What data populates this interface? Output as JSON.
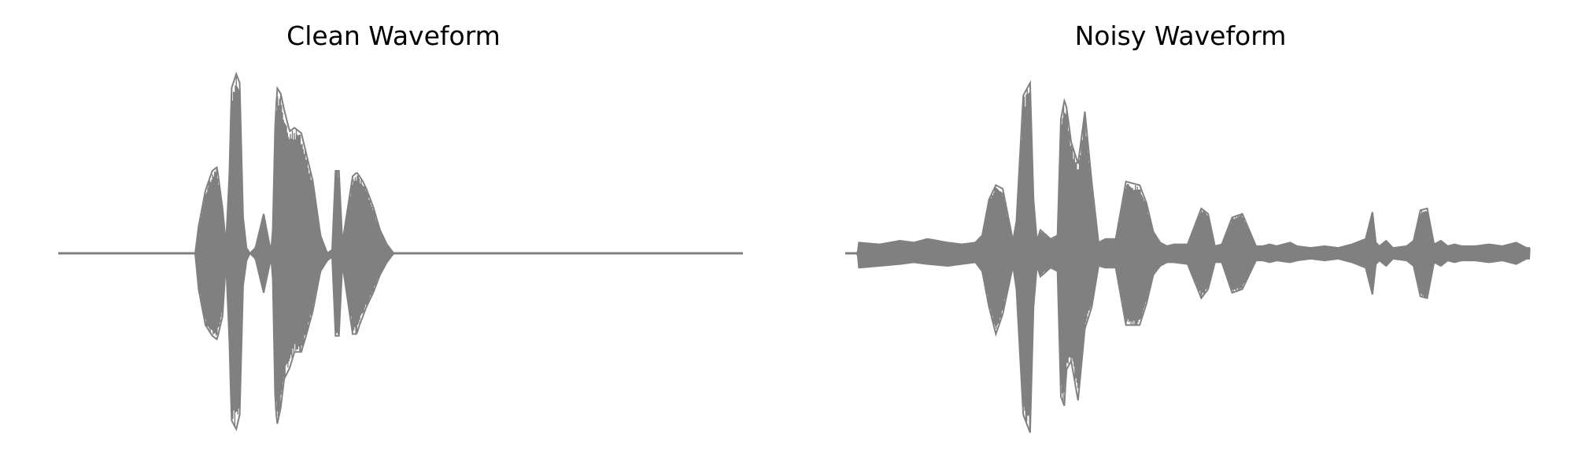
{
  "chart_data": [
    {
      "type": "line",
      "title": "Clean Waveform",
      "axes_visible": false,
      "color": "#808080",
      "x": [
        0.0,
        0.2,
        0.205,
        0.215,
        0.225,
        0.232,
        0.24,
        0.245,
        0.25,
        0.253,
        0.26,
        0.265,
        0.27,
        0.275,
        0.28,
        0.288,
        0.3,
        0.31,
        0.313,
        0.317,
        0.32,
        0.325,
        0.33,
        0.338,
        0.345,
        0.355,
        0.362,
        0.372,
        0.383,
        0.393,
        0.4,
        0.405,
        0.41,
        0.415,
        0.43,
        0.436,
        0.44,
        0.445,
        0.45,
        0.46,
        0.47,
        0.48,
        0.49,
        0.5,
        0.52,
        0.6,
        0.8,
        1.0
      ],
      "amp_upper": [
        0.0,
        0.0,
        0.15,
        0.35,
        0.46,
        0.48,
        0.25,
        0.05,
        0.45,
        0.92,
        1.0,
        0.95,
        0.2,
        0.03,
        0.0,
        0.03,
        0.22,
        0.02,
        0.08,
        0.75,
        0.92,
        0.89,
        0.8,
        0.68,
        0.7,
        0.67,
        0.56,
        0.4,
        0.1,
        0.0,
        0.02,
        0.46,
        0.46,
        0.06,
        0.43,
        0.45,
        0.43,
        0.4,
        0.36,
        0.26,
        0.13,
        0.05,
        0.0,
        0.0,
        0.0,
        0.0,
        0.0,
        0.0
      ],
      "amp_lower": [
        0.0,
        0.0,
        -0.2,
        -0.4,
        -0.46,
        -0.48,
        -0.35,
        -0.05,
        -0.5,
        -0.93,
        -0.98,
        -0.9,
        -0.18,
        -0.04,
        0.0,
        -0.03,
        -0.22,
        -0.04,
        -0.08,
        -0.85,
        -0.95,
        -0.86,
        -0.7,
        -0.64,
        -0.55,
        -0.55,
        -0.46,
        -0.32,
        -0.1,
        -0.04,
        -0.02,
        -0.46,
        -0.46,
        -0.06,
        -0.45,
        -0.45,
        -0.4,
        -0.35,
        -0.3,
        -0.22,
        -0.12,
        -0.05,
        0.0,
        0.0,
        0.0,
        0.0,
        0.0,
        0.0
      ]
    },
    {
      "type": "line",
      "title": "Noisy Waveform",
      "axes_visible": false,
      "color": "#808080",
      "x": [
        0.0,
        0.018,
        0.02,
        0.05,
        0.08,
        0.1,
        0.12,
        0.15,
        0.17,
        0.19,
        0.2,
        0.21,
        0.22,
        0.23,
        0.245,
        0.25,
        0.26,
        0.27,
        0.275,
        0.28,
        0.285,
        0.3,
        0.31,
        0.315,
        0.32,
        0.323,
        0.33,
        0.34,
        0.35,
        0.36,
        0.37,
        0.38,
        0.395,
        0.41,
        0.43,
        0.44,
        0.45,
        0.46,
        0.47,
        0.48,
        0.5,
        0.52,
        0.53,
        0.54,
        0.55,
        0.565,
        0.58,
        0.6,
        0.61,
        0.62,
        0.63,
        0.65,
        0.66,
        0.68,
        0.7,
        0.72,
        0.74,
        0.76,
        0.77,
        0.775,
        0.78,
        0.79,
        0.8,
        0.82,
        0.83,
        0.84,
        0.85,
        0.86,
        0.87,
        0.88,
        0.89,
        0.9,
        0.92,
        0.94,
        0.96,
        0.98,
        0.995,
        1.0
      ],
      "amp_upper": [
        0.0,
        0.0,
        0.06,
        0.05,
        0.07,
        0.06,
        0.08,
        0.06,
        0.05,
        0.06,
        0.1,
        0.3,
        0.38,
        0.36,
        0.07,
        0.18,
        0.88,
        0.95,
        0.3,
        0.07,
        0.13,
        0.08,
        0.1,
        0.75,
        0.85,
        0.82,
        0.62,
        0.5,
        0.79,
        0.4,
        0.06,
        0.08,
        0.08,
        0.4,
        0.38,
        0.28,
        0.12,
        0.06,
        0.04,
        0.05,
        0.05,
        0.25,
        0.22,
        0.04,
        0.05,
        0.2,
        0.22,
        0.04,
        0.04,
        0.05,
        0.04,
        0.06,
        0.04,
        0.03,
        0.04,
        0.03,
        0.05,
        0.08,
        0.23,
        0.06,
        0.04,
        0.07,
        0.03,
        0.04,
        0.07,
        0.24,
        0.25,
        0.05,
        0.07,
        0.04,
        0.05,
        0.04,
        0.04,
        0.05,
        0.04,
        0.06,
        0.03,
        0.03
      ],
      "amp_lower": [
        0.0,
        0.0,
        -0.08,
        -0.07,
        -0.06,
        -0.05,
        -0.06,
        -0.07,
        -0.06,
        -0.05,
        -0.1,
        -0.3,
        -0.45,
        -0.34,
        -0.07,
        -0.2,
        -0.9,
        -1.0,
        -0.3,
        -0.07,
        -0.13,
        -0.08,
        -0.1,
        -0.8,
        -0.85,
        -0.65,
        -0.6,
        -0.82,
        -0.42,
        -0.3,
        -0.07,
        -0.08,
        -0.08,
        -0.4,
        -0.4,
        -0.28,
        -0.12,
        -0.07,
        -0.05,
        -0.05,
        -0.06,
        -0.25,
        -0.2,
        -0.05,
        -0.05,
        -0.22,
        -0.2,
        -0.04,
        -0.04,
        -0.05,
        -0.04,
        -0.05,
        -0.04,
        -0.03,
        -0.04,
        -0.03,
        -0.05,
        -0.08,
        -0.23,
        -0.06,
        -0.04,
        -0.07,
        -0.03,
        -0.04,
        -0.07,
        -0.24,
        -0.25,
        -0.05,
        -0.07,
        -0.04,
        -0.05,
        -0.04,
        -0.04,
        -0.05,
        -0.04,
        -0.06,
        -0.03,
        -0.03
      ]
    }
  ]
}
